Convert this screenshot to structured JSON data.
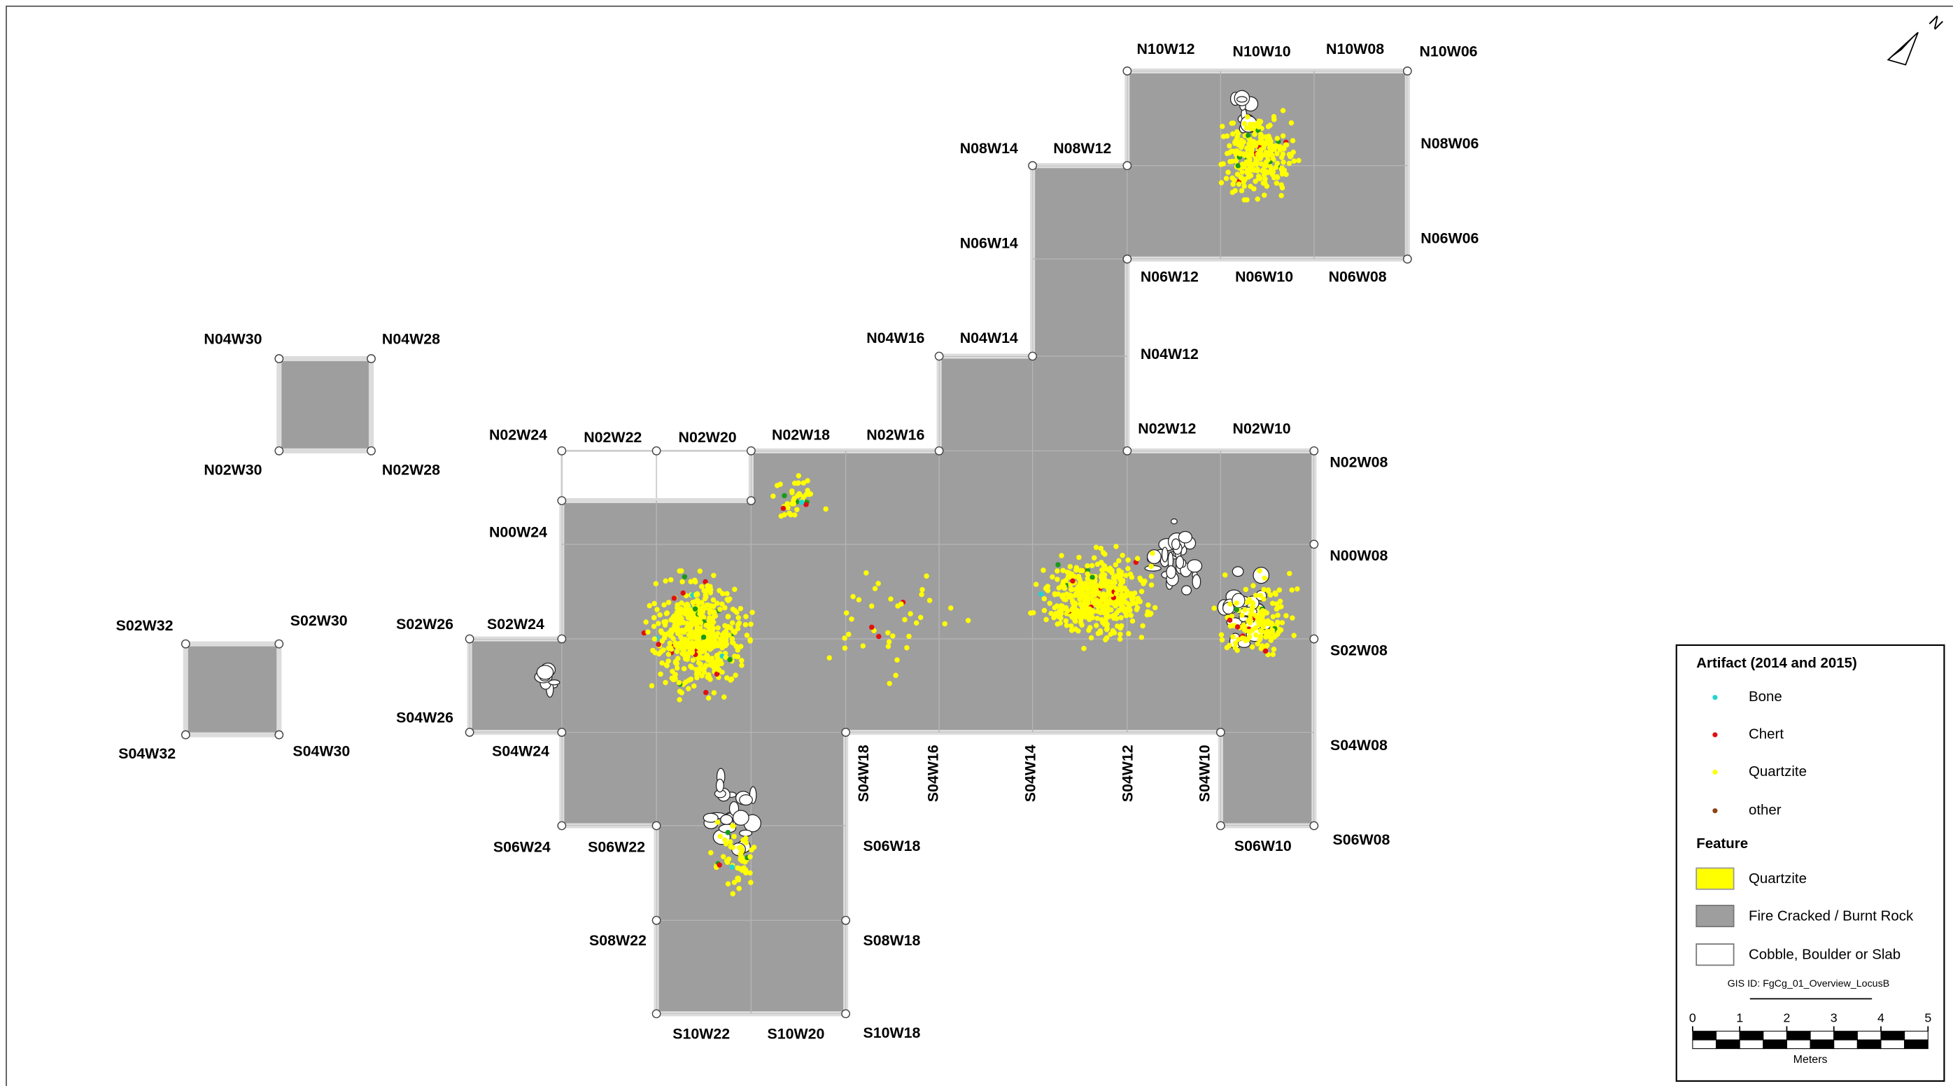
{
  "map": {
    "grid_labels": [
      "N10W12",
      "N10W10",
      "N10W08",
      "N10W06",
      "N08W14",
      "N08W12",
      "N08W06",
      "N06W14",
      "N06W06",
      "N06W12",
      "N06W10",
      "N06W08",
      "N04W16",
      "N04W14",
      "N04W12",
      "N04W30",
      "N04W28",
      "N02W30",
      "N02W28",
      "N02W24",
      "N02W22",
      "N02W20",
      "N02W18",
      "N02W16",
      "N02W12",
      "N02W10",
      "N02W08",
      "N00W24",
      "N00W08",
      "S02W32",
      "S02W30",
      "S02W26",
      "S02W24",
      "S02W08",
      "S04W26",
      "S04W32",
      "S04W30",
      "S04W24",
      "S04W08",
      "S06W24",
      "S06W22",
      "S06W18",
      "S06W10",
      "S06W08",
      "S08W22",
      "S08W18",
      "S10W22",
      "S10W20",
      "S10W18",
      "S04W18",
      "S04W16",
      "S04W14",
      "S04W12",
      "S04W10"
    ],
    "north": "N"
  },
  "legend": {
    "artifact_title": "Artifact (2014 and 2015)",
    "artifacts": [
      "Bone",
      "Chert",
      "Quartzite",
      "other"
    ],
    "feature_title": "Feature",
    "features": [
      "Quartzite",
      "Fire Cracked / Burnt Rock",
      "Cobble, Boulder or Slab"
    ]
  },
  "gis_id": "GIS ID: FgCg_01_Overview_LocusB",
  "scale": {
    "ticks": [
      0,
      1,
      2,
      3,
      4,
      5
    ],
    "unit": "Meters"
  }
}
